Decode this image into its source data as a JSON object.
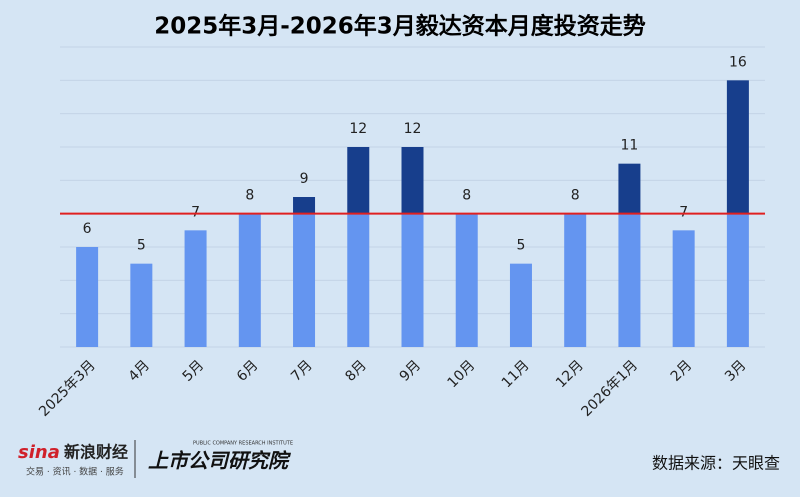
{
  "chart_data": {
    "type": "bar",
    "title": "2025年3月-2026年3月毅达资本月度投资走势",
    "categories": [
      "2025年3月",
      "4月",
      "5月",
      "6月",
      "7月",
      "8月",
      "9月",
      "10月",
      "11月",
      "12月",
      "2026年1月",
      "2月",
      "3月"
    ],
    "values": [
      6,
      5,
      7,
      8,
      9,
      12,
      12,
      8,
      5,
      8,
      11,
      7,
      16
    ],
    "color": "#6495f0",
    "above_color": "#173e8c",
    "threshold": 8,
    "threshold_color": "#e02020",
    "ylim": [
      0,
      18
    ],
    "yticks": [
      0,
      2,
      4,
      6,
      8,
      10,
      12,
      14,
      16,
      18
    ],
    "grid": true
  },
  "footer": {
    "brand": "新浪财经",
    "brand_sub": "交易 · 资讯 · 数据 · 服务",
    "institute": "上市公司研究院",
    "institute_en": "PUBLIC COMPANY RESEARCH INSTITUTE",
    "source": "数据来源：天眼查"
  }
}
